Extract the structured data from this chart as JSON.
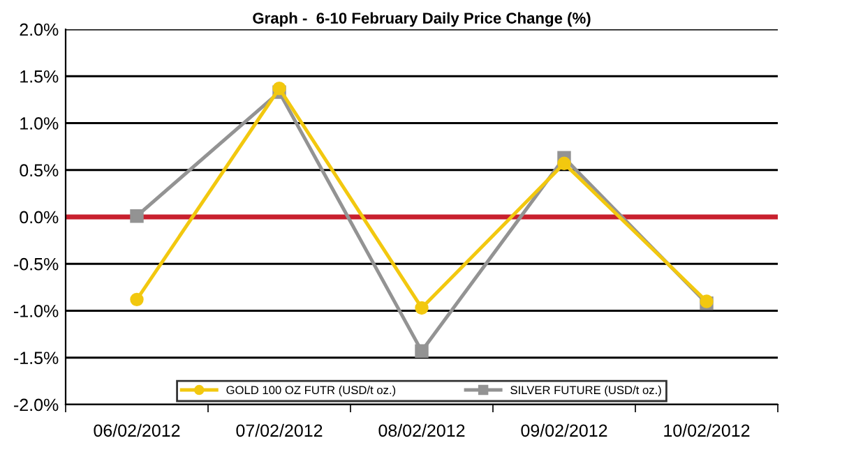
{
  "chart_data": {
    "type": "line",
    "title": "Graph -  6-10 February Daily Price Change (%)",
    "categories": [
      "06/02/2012",
      "07/02/2012",
      "08/02/2012",
      "09/02/2012",
      "10/02/2012"
    ],
    "series": [
      {
        "name": "GOLD 100 OZ FUTR (USD/t oz.)",
        "color": "#f2c80f",
        "marker": "circle",
        "values": [
          -0.88,
          1.37,
          -0.97,
          0.57,
          -0.9
        ]
      },
      {
        "name": "SILVER FUTURE (USD/t oz.)",
        "color": "#939393",
        "marker": "square",
        "values": [
          0.01,
          1.33,
          -1.43,
          0.63,
          -0.92
        ]
      }
    ],
    "ylim": [
      -2.0,
      2.0
    ],
    "yticks": [
      {
        "value": -2.0,
        "label": "-2.0%"
      },
      {
        "value": -1.5,
        "label": "-1.5%"
      },
      {
        "value": -1.0,
        "label": "-1.0%"
      },
      {
        "value": -0.5,
        "label": "-0.5%"
      },
      {
        "value": 0.0,
        "label": "0.0%"
      },
      {
        "value": 0.5,
        "label": "0.5%"
      },
      {
        "value": 1.0,
        "label": "1.0%"
      },
      {
        "value": 1.5,
        "label": "1.5%"
      },
      {
        "value": 2.0,
        "label": "2.0%"
      }
    ],
    "ref_lines": [
      {
        "axis": "y",
        "value": 0,
        "color": "#c8202e"
      }
    ],
    "grid": "y",
    "legend": "bottom",
    "line_style": "solid"
  }
}
